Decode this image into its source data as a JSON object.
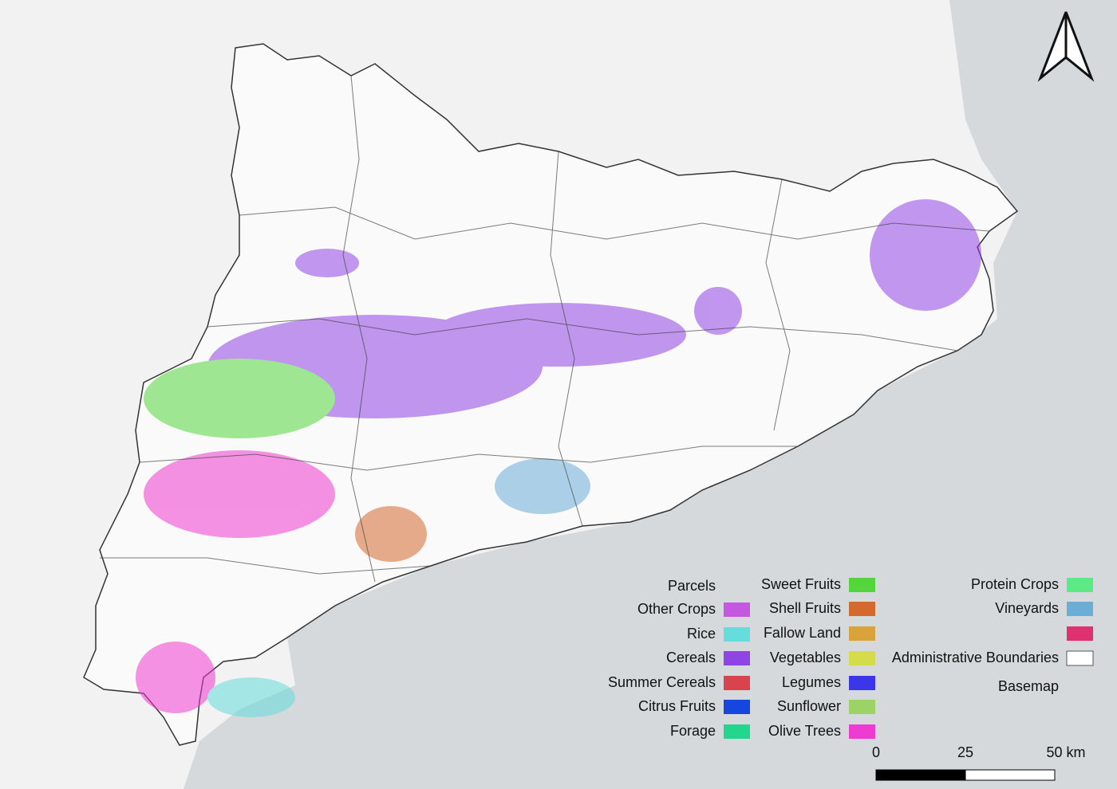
{
  "legend": {
    "columns": [
      [
        {
          "label": "Parcels",
          "color": null
        },
        {
          "label": "Other Crops",
          "color": "#c557e0"
        },
        {
          "label": "Rice",
          "color": "#66dcdc"
        },
        {
          "label": "Cereals",
          "color": "#8f44e6"
        },
        {
          "label": "Summer Cereals",
          "color": "#d8434d"
        },
        {
          "label": "Citrus Fruits",
          "color": "#1546e0"
        },
        {
          "label": "Forage",
          "color": "#22d68e"
        }
      ],
      [
        {
          "label": "Sweet Fruits",
          "color": "#53d63c"
        },
        {
          "label": "Shell Fruits",
          "color": "#d4692e"
        },
        {
          "label": "Fallow Land",
          "color": "#d9a33a"
        },
        {
          "label": "Vegetables",
          "color": "#d5dc4a"
        },
        {
          "label": "Legumes",
          "color": "#3b36e8"
        },
        {
          "label": "Sunflower",
          "color": "#9bd464"
        },
        {
          "label": "Olive Trees",
          "color": "#ee3ad0"
        }
      ],
      [
        {
          "label": "Protein Crops",
          "color": "#5cea86"
        },
        {
          "label": "Vineyards",
          "color": "#6aadd6"
        },
        {
          "label": null,
          "color": "#e0306f"
        },
        {
          "label": "Administrative Boundaries",
          "color": "#ffffff"
        },
        {
          "label": "Basemap",
          "color": null
        }
      ]
    ]
  },
  "scale_bar": {
    "labels": [
      "0",
      "25",
      "50 km"
    ]
  }
}
